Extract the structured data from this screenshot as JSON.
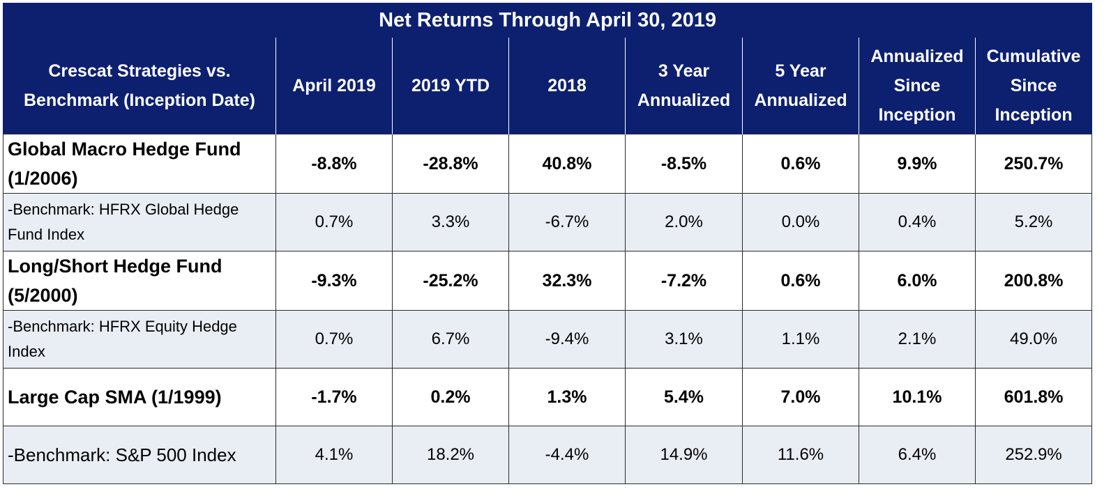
{
  "chart_data": {
    "type": "table",
    "title": "Net Returns Through April 30, 2019",
    "columns": [
      "Crescat Strategies vs. Benchmark (Inception Date)",
      "April 2019",
      "2019 YTD",
      "2018",
      "3 Year Annualized",
      "5 Year Annualized",
      "Annualized Since Inception",
      "Cumulative Since Inception"
    ],
    "rows": [
      {
        "kind": "fund",
        "label": "Global Macro Hedge Fund (1/2006)",
        "values": [
          "-8.8%",
          "-28.8%",
          "40.8%",
          "-8.5%",
          "0.6%",
          "9.9%",
          "250.7%"
        ]
      },
      {
        "kind": "bench",
        "label": "-Benchmark: HFRX Global Hedge Fund Index",
        "values": [
          "0.7%",
          "3.3%",
          "-6.7%",
          "2.0%",
          "0.0%",
          "0.4%",
          "5.2%"
        ]
      },
      {
        "kind": "fund",
        "label": "Long/Short Hedge Fund (5/2000)",
        "values": [
          "-9.3%",
          "-25.2%",
          "32.3%",
          "-7.2%",
          "0.6%",
          "6.0%",
          "200.8%"
        ]
      },
      {
        "kind": "bench",
        "label": "-Benchmark: HFRX Equity Hedge Index",
        "values": [
          "0.7%",
          "6.7%",
          "-9.4%",
          "3.1%",
          "1.1%",
          "2.1%",
          "49.0%"
        ]
      },
      {
        "kind": "fund",
        "label": "Large Cap SMA (1/1999)",
        "values": [
          "-1.7%",
          "0.2%",
          "1.3%",
          "5.4%",
          "7.0%",
          "10.1%",
          "601.8%"
        ]
      },
      {
        "kind": "bench",
        "label": "-Benchmark: S&P 500 Index",
        "values": [
          "4.1%",
          "18.2%",
          "-4.4%",
          "14.9%",
          "11.6%",
          "6.4%",
          "252.9%"
        ]
      }
    ]
  },
  "colors": {
    "header_bg": "#0d2070",
    "header_text": "#ffffff",
    "benchmark_row_bg": "#e9edf4"
  }
}
